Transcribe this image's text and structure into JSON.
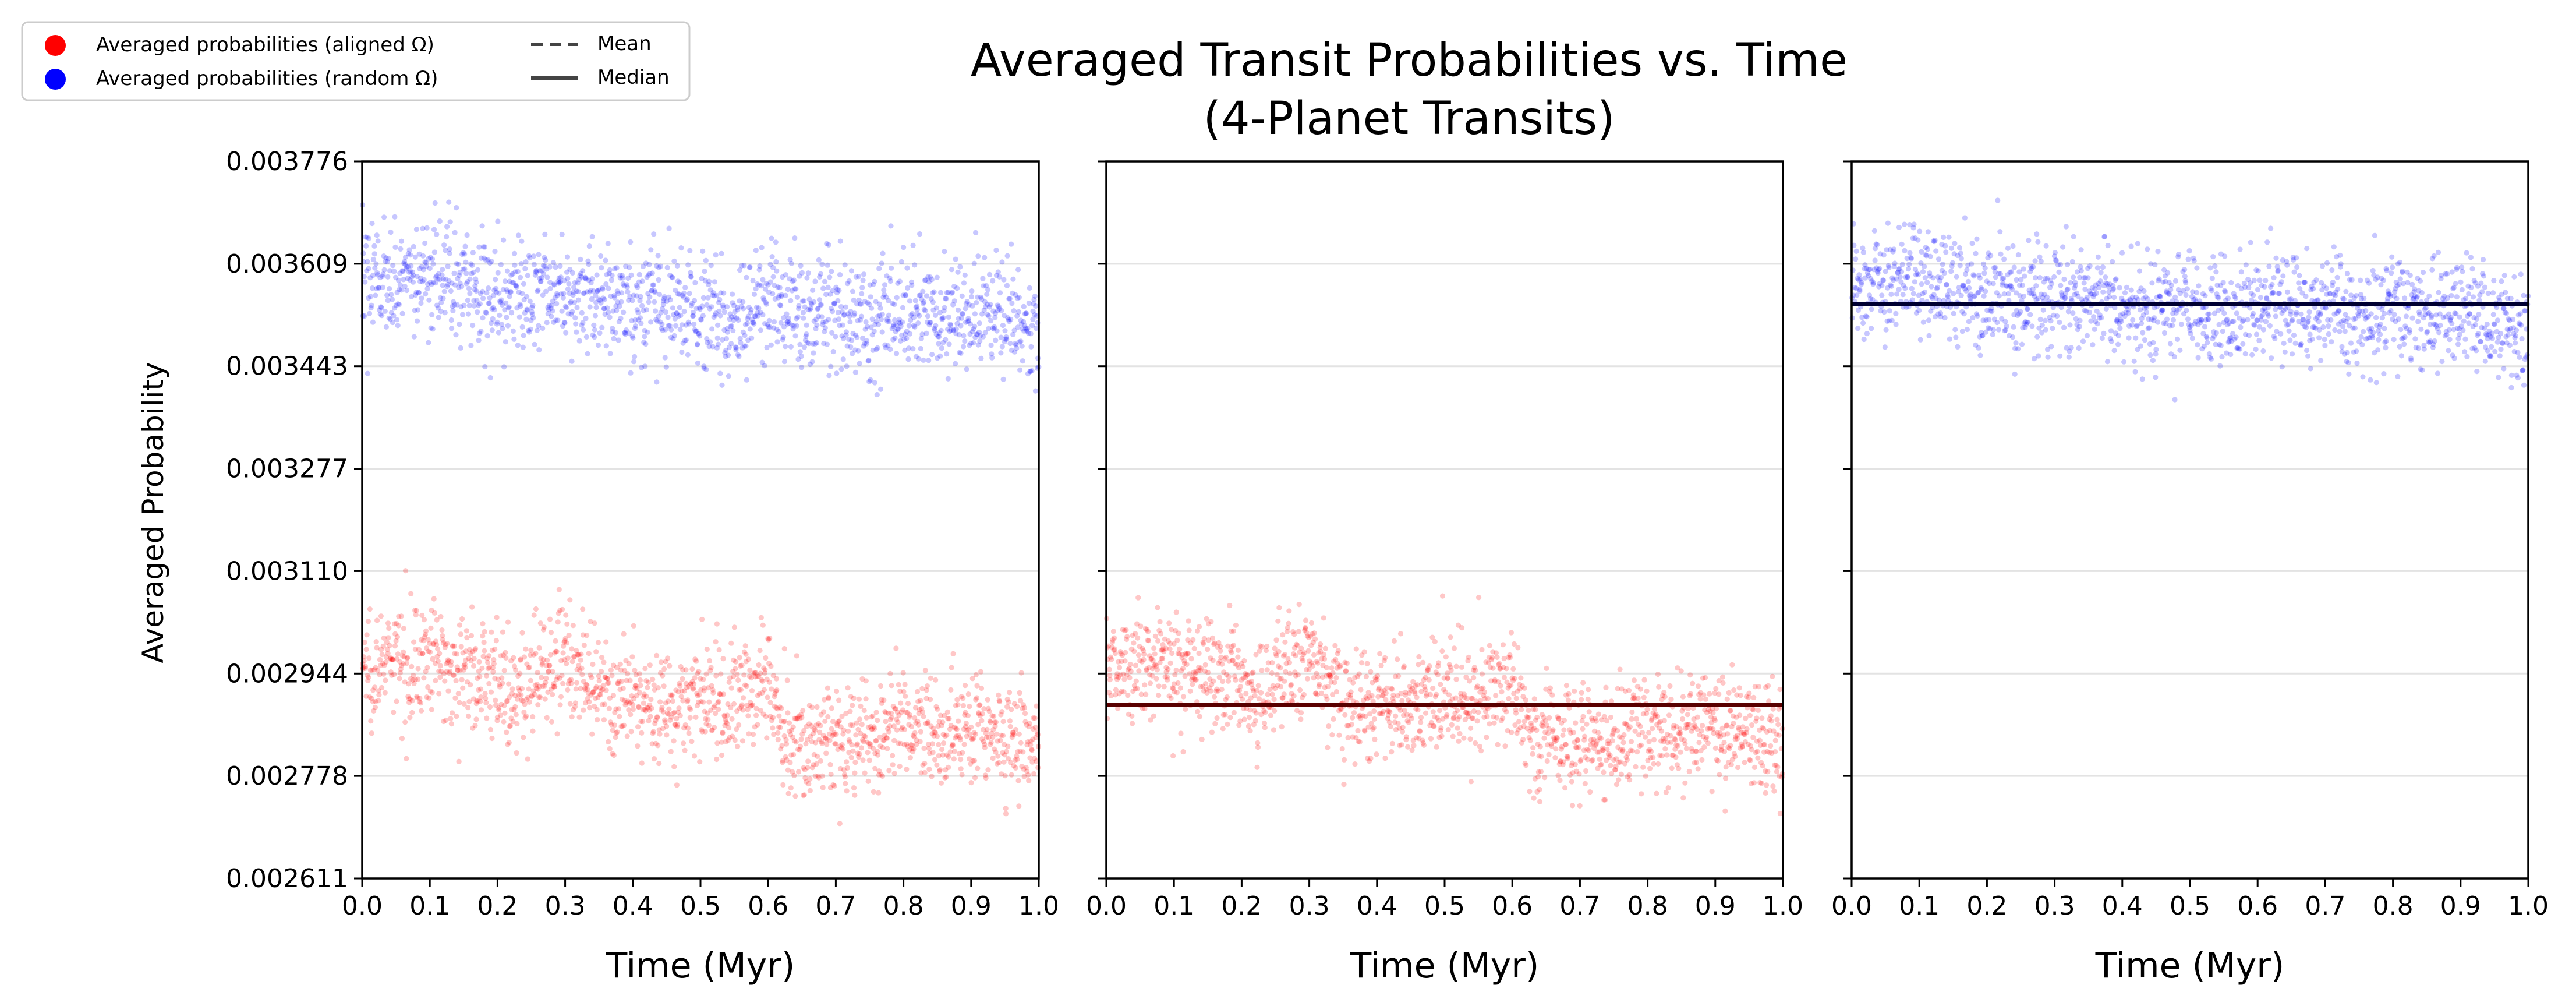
{
  "title": "Averaged Transit Probabilities vs. Time",
  "subtitle": "(4-Planet Transits)",
  "legend": {
    "placement": "top-left",
    "entries": [
      {
        "label": "Averaged probabilities (aligned Ω)",
        "marker": "circle",
        "color": "#ff0000"
      },
      {
        "label": "Averaged probabilities (random Ω)",
        "marker": "circle",
        "color": "#0000ff"
      },
      {
        "label": "Mean",
        "marker": "dashed-line",
        "color": "#000000"
      },
      {
        "label": "Median",
        "marker": "solid-line",
        "color": "#000000"
      }
    ]
  },
  "ylabel": "Averaged Probability",
  "xlabel": "Time (Myr)",
  "chart_data": [
    {
      "type": "scatter",
      "panel": 1,
      "xlabel": "Time (Myr)",
      "ylabel": "Averaged Probability",
      "xlim": [
        0.0,
        1.0
      ],
      "ylim": [
        0.002611,
        0.003776
      ],
      "xticks": [
        "0.0",
        "0.1",
        "0.2",
        "0.3",
        "0.4",
        "0.5",
        "0.6",
        "0.7",
        "0.8",
        "0.9",
        "1.0"
      ],
      "yticks": [
        "0.002611",
        "0.002778",
        "0.002944",
        "0.003110",
        "0.003277",
        "0.003443",
        "0.003609",
        "0.003776"
      ],
      "grid": "horizontal",
      "series": [
        {
          "name": "Averaged probabilities (aligned Ω)",
          "color": "#ff0000",
          "x": [
            0.0,
            0.05,
            0.1,
            0.15,
            0.2,
            0.22,
            0.25,
            0.3,
            0.35,
            0.4,
            0.45,
            0.5,
            0.55,
            0.6,
            0.63,
            0.65,
            0.7,
            0.75,
            0.8,
            0.85,
            0.9,
            0.95,
            1.0
          ],
          "y": [
            0.00296,
            0.00296,
            0.00297,
            0.00295,
            0.00294,
            0.00288,
            0.00294,
            0.00298,
            0.0029,
            0.0029,
            0.00289,
            0.0029,
            0.0029,
            0.00294,
            0.00283,
            0.00283,
            0.00284,
            0.00283,
            0.00286,
            0.00285,
            0.00286,
            0.00284,
            0.00283
          ]
        },
        {
          "name": "Averaged probabilities (random Ω)",
          "color": "#0000ff",
          "x": [
            0.0,
            0.05,
            0.1,
            0.15,
            0.2,
            0.25,
            0.3,
            0.35,
            0.4,
            0.45,
            0.5,
            0.55,
            0.6,
            0.65,
            0.7,
            0.75,
            0.8,
            0.85,
            0.9,
            0.95,
            1.0
          ],
          "y": [
            0.00358,
            0.00358,
            0.00359,
            0.00357,
            0.00356,
            0.00355,
            0.00356,
            0.00355,
            0.00354,
            0.00354,
            0.00354,
            0.00352,
            0.00355,
            0.00353,
            0.00353,
            0.00352,
            0.00354,
            0.00352,
            0.00353,
            0.00352,
            0.0035
          ]
        }
      ]
    },
    {
      "type": "scatter",
      "panel": 2,
      "xlabel": "Time (Myr)",
      "xlim": [
        0.0,
        1.0
      ],
      "ylim": [
        0.002611,
        0.003776
      ],
      "xticks": [
        "0.0",
        "0.1",
        "0.2",
        "0.3",
        "0.4",
        "0.5",
        "0.6",
        "0.7",
        "0.8",
        "0.9",
        "1.0"
      ],
      "grid": "horizontal",
      "series": [
        {
          "name": "Averaged probabilities (aligned Ω)",
          "color": "#ff0000",
          "x": [
            0.0,
            0.05,
            0.1,
            0.15,
            0.2,
            0.22,
            0.25,
            0.3,
            0.35,
            0.4,
            0.45,
            0.5,
            0.55,
            0.6,
            0.63,
            0.65,
            0.7,
            0.75,
            0.8,
            0.85,
            0.9,
            0.95,
            1.0
          ],
          "y": [
            0.00296,
            0.00296,
            0.00297,
            0.00295,
            0.00294,
            0.00288,
            0.00294,
            0.00298,
            0.0029,
            0.0029,
            0.00289,
            0.0029,
            0.0029,
            0.00294,
            0.00283,
            0.00283,
            0.00284,
            0.00283,
            0.00286,
            0.00285,
            0.00286,
            0.00284,
            0.00283
          ]
        }
      ],
      "hlines": [
        {
          "name": "Median",
          "style": "solid",
          "color": "#5a0000",
          "y": 0.002893
        }
      ]
    },
    {
      "type": "scatter",
      "panel": 3,
      "xlabel": "Time (Myr)",
      "xlim": [
        0.0,
        1.0
      ],
      "ylim": [
        0.002611,
        0.003776
      ],
      "xticks": [
        "0.0",
        "0.1",
        "0.2",
        "0.3",
        "0.4",
        "0.5",
        "0.6",
        "0.7",
        "0.8",
        "0.9",
        "1.0"
      ],
      "grid": "horizontal",
      "series": [
        {
          "name": "Averaged probabilities (random Ω)",
          "color": "#0000ff",
          "x": [
            0.0,
            0.05,
            0.1,
            0.15,
            0.2,
            0.25,
            0.3,
            0.35,
            0.4,
            0.45,
            0.5,
            0.55,
            0.6,
            0.65,
            0.7,
            0.75,
            0.8,
            0.85,
            0.9,
            0.95,
            1.0
          ],
          "y": [
            0.00358,
            0.00358,
            0.00359,
            0.00357,
            0.00356,
            0.00355,
            0.00356,
            0.00355,
            0.00354,
            0.00354,
            0.00354,
            0.00352,
            0.00355,
            0.00353,
            0.00353,
            0.00352,
            0.00354,
            0.00352,
            0.00353,
            0.00352,
            0.0035
          ]
        }
      ],
      "hlines": [
        {
          "name": "Median",
          "style": "solid",
          "color": "#000033",
          "y": 0.003544
        }
      ]
    }
  ]
}
